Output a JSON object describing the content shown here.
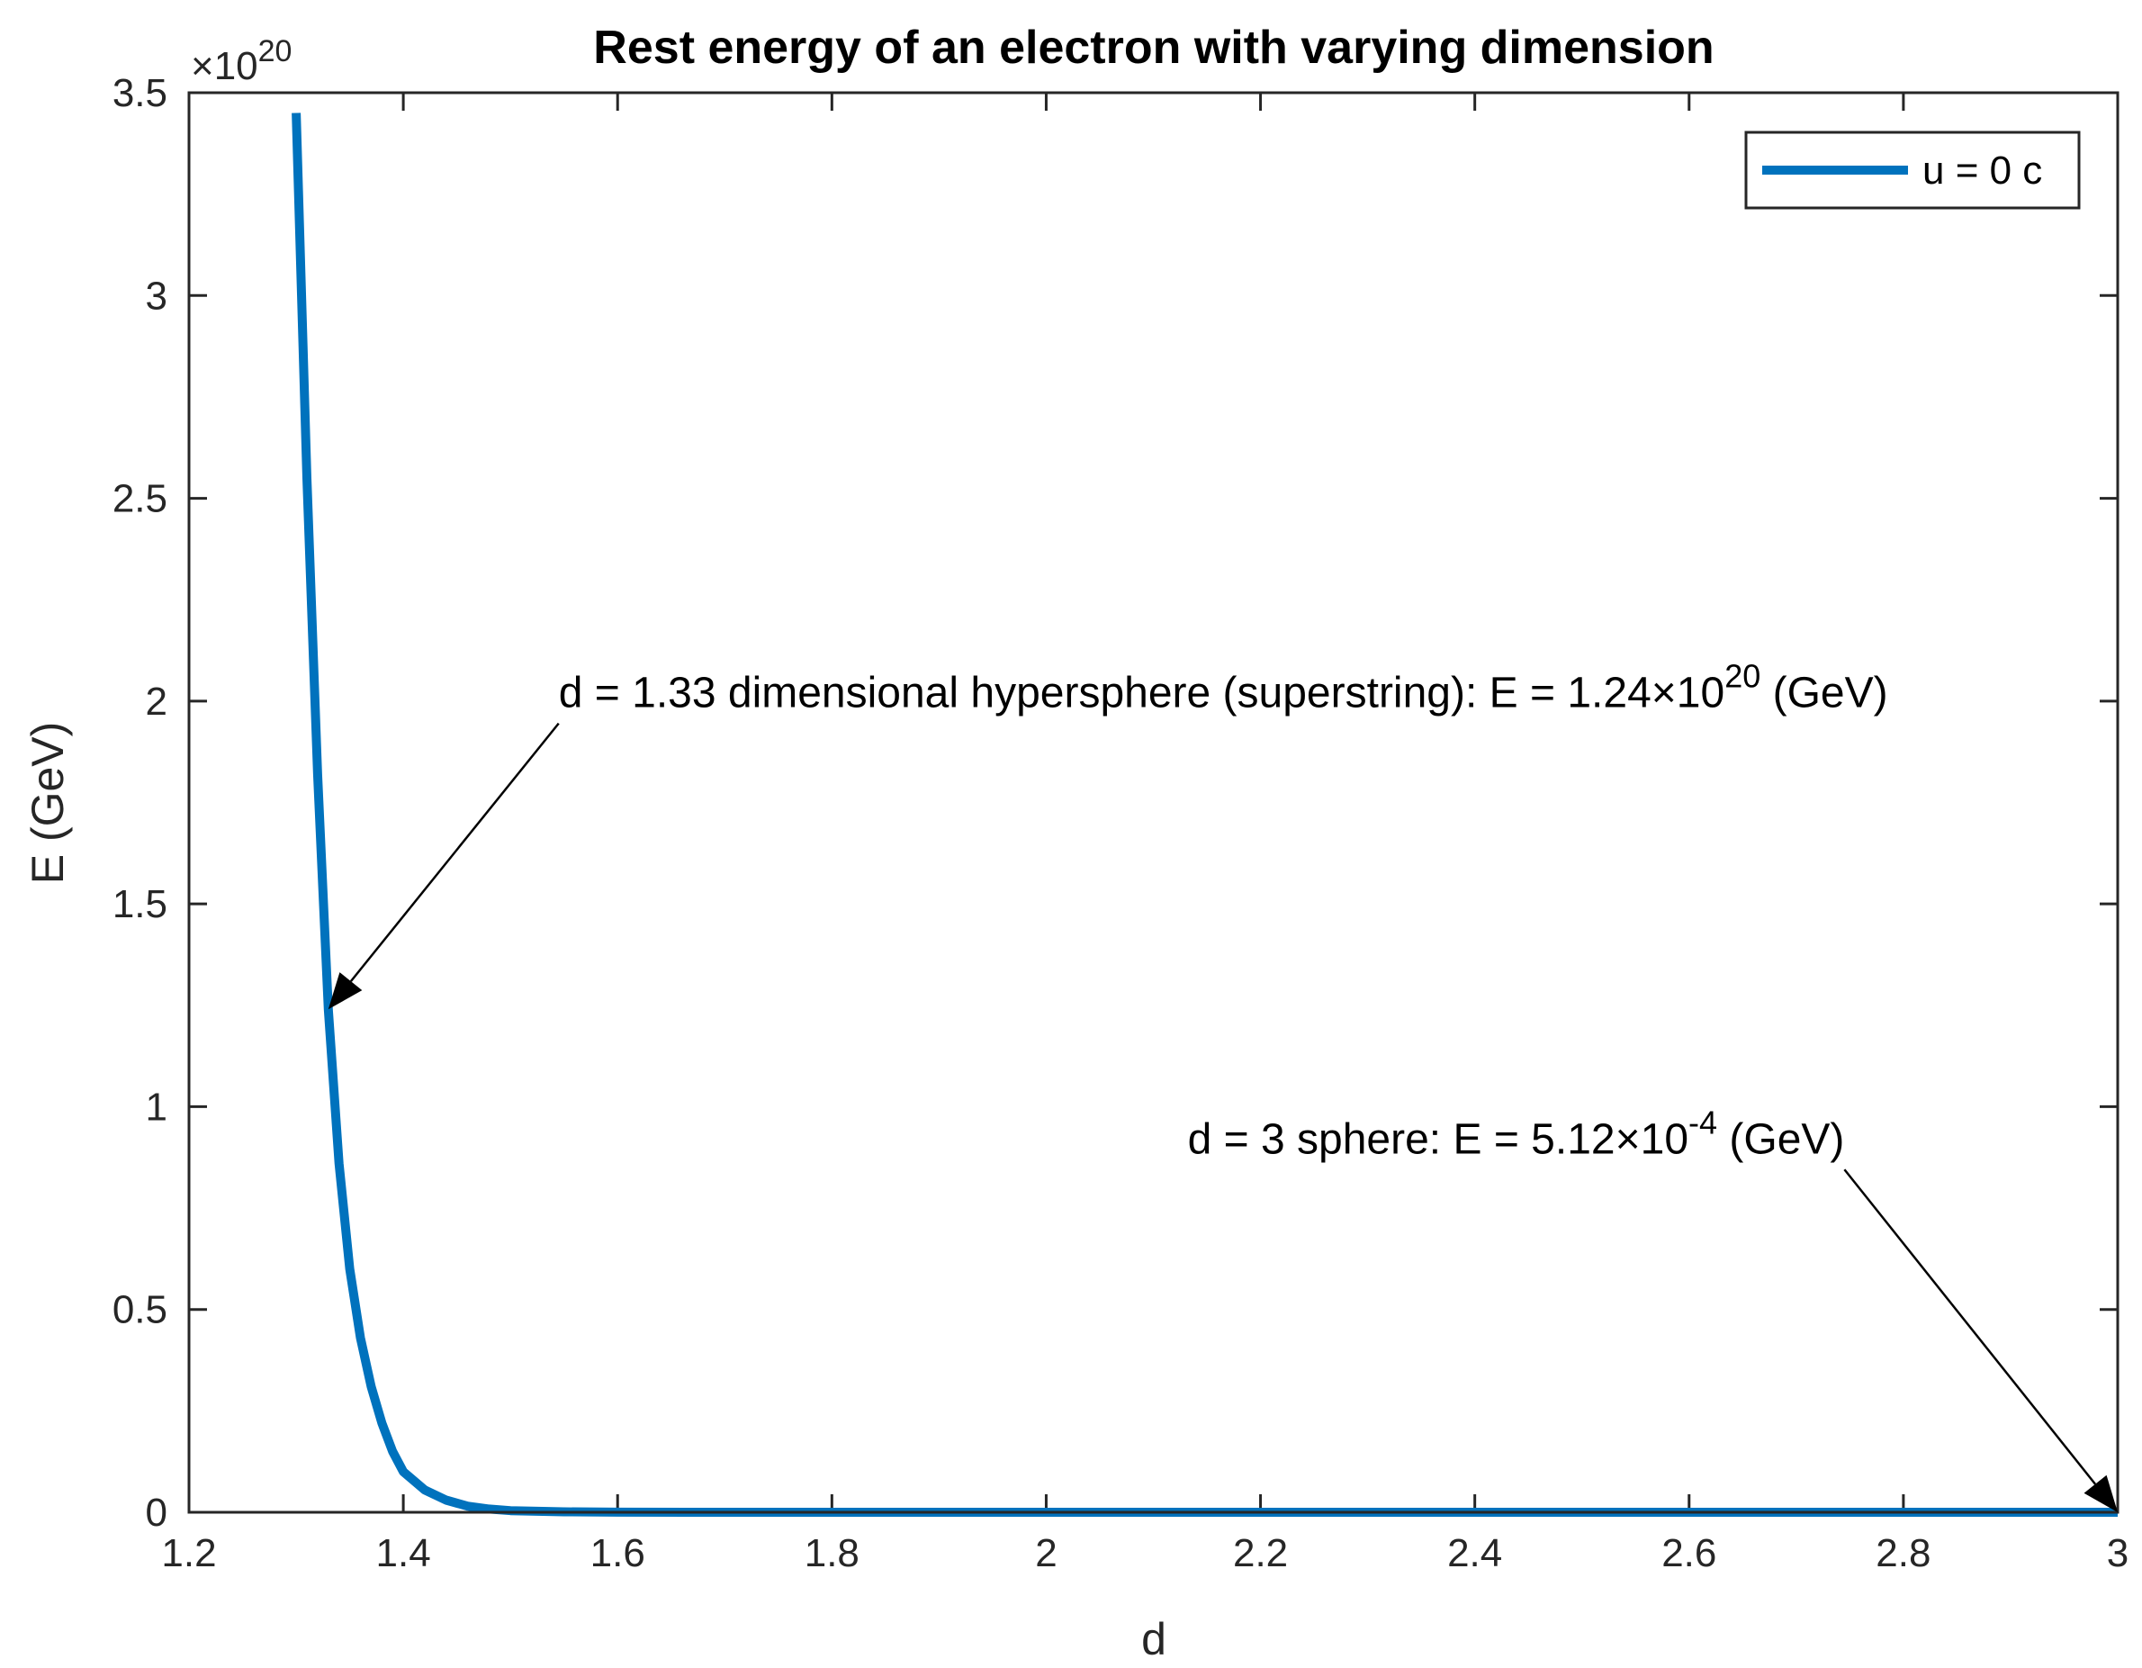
{
  "chart_data": {
    "type": "line",
    "title": "Rest energy of an electron with varying dimension",
    "xlabel": "d",
    "ylabel": "E (GeV)",
    "xlim": [
      1.2,
      3
    ],
    "ylim": [
      0,
      3.5
    ],
    "y_exponent_label": "×10",
    "y_exponent": "20",
    "x_ticks": [
      1.2,
      1.4,
      1.6,
      1.8,
      2,
      2.2,
      2.4,
      2.6,
      2.8,
      3
    ],
    "y_ticks": [
      0,
      0.5,
      1,
      1.5,
      2,
      2.5,
      3,
      3.5
    ],
    "grid": false,
    "legend": {
      "location": "top-right",
      "entries": [
        "u = 0 c"
      ]
    },
    "series": [
      {
        "name": "u = 0 c",
        "color": "#0072BD",
        "x": [
          1.3,
          1.31,
          1.32,
          1.33,
          1.34,
          1.35,
          1.36,
          1.37,
          1.38,
          1.39,
          1.4,
          1.42,
          1.44,
          1.46,
          1.48,
          1.5,
          1.55,
          1.6,
          1.7,
          1.8,
          2.0,
          2.2,
          2.4,
          2.6,
          2.8,
          3.0
        ],
        "y": [
          3.45,
          2.55,
          1.82,
          1.24,
          0.86,
          0.6,
          0.43,
          0.31,
          0.22,
          0.15,
          0.1,
          0.055,
          0.03,
          0.015,
          0.008,
          0.004,
          0.001,
          0.0003,
          0,
          0,
          0,
          0,
          0,
          0,
          0,
          0
        ]
      }
    ],
    "annotations": [
      {
        "id": "superstring",
        "text_before": "d = 1.33 dimensional hypersphere (superstring): E = 1.24×10",
        "superscript": "20",
        "text_after": " (GeV)",
        "point": [
          1.33,
          1.24
        ],
        "text_anchor": [
          1.545,
          1.945
        ]
      },
      {
        "id": "sphere",
        "text_before": "d = 3 sphere: E = 5.12×10",
        "superscript": "-4",
        "text_after": " (GeV)",
        "point": [
          3.0,
          0.0
        ],
        "text_anchor": [
          2.745,
          0.845
        ]
      }
    ]
  },
  "colors": {
    "line": "#0072BD",
    "axes": "#262626"
  }
}
